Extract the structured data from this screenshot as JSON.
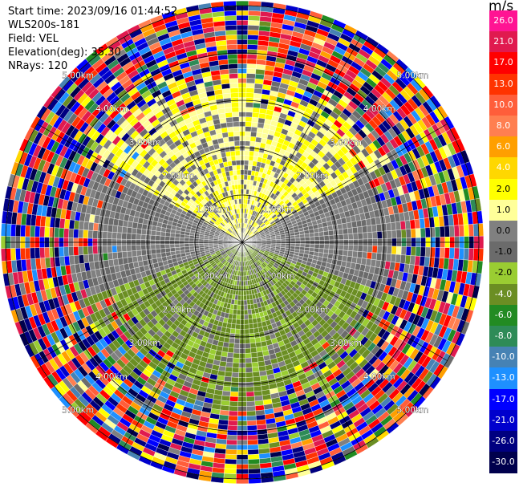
{
  "header": {
    "start_time": "Start time: 2023/09/16 01:44:52",
    "instrument": "WLS200s-181",
    "field": "Field: VEL",
    "elevation": "Elevation(deg): 35.30",
    "nrays": "NRays: 120"
  },
  "colorbar": {
    "unit": "m/s",
    "ticks": [
      "26.0",
      "21.0",
      "17.0",
      "13.0",
      "10.0",
      "8.0",
      "6.0",
      "4.0",
      "2.0",
      "1.0",
      "0.0",
      "-1.0",
      "-2.0",
      "-4.0",
      "-6.0",
      "-8.0",
      "-10.0",
      "-13.0",
      "-17.0",
      "-21.0",
      "-26.0",
      "-30.0"
    ],
    "colors": [
      "#ff1493",
      "#e01a4f",
      "#ff0000",
      "#ff3300",
      "#ff5e3a",
      "#ff7f50",
      "#ff9f00",
      "#ffd700",
      "#ffff00",
      "#ffff99",
      "#808080",
      "#6b6b6b",
      "#9acd32",
      "#6b8e23",
      "#228b22",
      "#2e8b57",
      "#4682b4",
      "#1e90ff",
      "#0000ff",
      "#0000cd",
      "#000080",
      "#00004d"
    ]
  },
  "chart_data": {
    "type": "ppi",
    "field": "VEL",
    "units": "m/s",
    "nrays": 120,
    "elevation_deg": 35.3,
    "range_rings_km": [
      1.0,
      2.0,
      3.0,
      4.0,
      5.0
    ],
    "ring_labels": [
      "1.00km",
      "2.00km",
      "3.00km",
      "4.00km",
      "5.00km"
    ],
    "vmin": -30.0,
    "vmax": 26.0,
    "pattern": {
      "toward_sector_deg": [
        300,
        60
      ],
      "toward_value": 2.0,
      "away_sector_deg": [
        110,
        250
      ],
      "away_value": -2.5,
      "noise_beyond_km": 3.6
    }
  }
}
